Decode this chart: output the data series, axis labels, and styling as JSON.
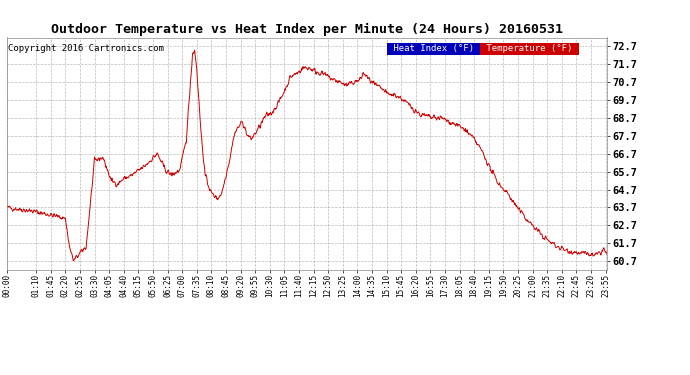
{
  "title": "Outdoor Temperature vs Heat Index per Minute (24 Hours) 20160531",
  "copyright": "Copyright 2016 Cartronics.com",
  "legend_heat_index": "Heat Index (°F)",
  "legend_temperature": "Temperature (°F)",
  "heat_index_color": "#0000bb",
  "temperature_color": "#cc0000",
  "background_color": "#ffffff",
  "grid_color": "#aaaaaa",
  "ylim": [
    60.2,
    73.2
  ],
  "yticks": [
    60.7,
    61.7,
    62.7,
    63.7,
    64.7,
    65.7,
    66.7,
    67.7,
    68.7,
    69.7,
    70.7,
    71.7,
    72.7
  ],
  "xlabel_times": [
    "00:00",
    "01:10",
    "01:45",
    "02:20",
    "02:55",
    "03:30",
    "04:05",
    "04:40",
    "05:15",
    "05:50",
    "06:25",
    "07:00",
    "07:35",
    "08:10",
    "08:45",
    "09:20",
    "09:55",
    "10:30",
    "11:05",
    "11:40",
    "12:15",
    "12:50",
    "13:25",
    "14:00",
    "14:35",
    "15:10",
    "15:45",
    "16:20",
    "16:55",
    "17:30",
    "18:05",
    "18:40",
    "19:15",
    "19:50",
    "20:25",
    "21:00",
    "21:35",
    "22:10",
    "22:45",
    "23:20",
    "23:55"
  ],
  "keypoints": [
    [
      0,
      63.7
    ],
    [
      60,
      63.5
    ],
    [
      100,
      63.3
    ],
    [
      140,
      63.1
    ],
    [
      150,
      61.5
    ],
    [
      160,
      60.7
    ],
    [
      170,
      61.0
    ],
    [
      190,
      61.5
    ],
    [
      210,
      66.3
    ],
    [
      230,
      66.5
    ],
    [
      250,
      65.2
    ],
    [
      265,
      65.0
    ],
    [
      280,
      65.3
    ],
    [
      300,
      65.5
    ],
    [
      330,
      66.0
    ],
    [
      360,
      66.7
    ],
    [
      380,
      65.8
    ],
    [
      395,
      65.5
    ],
    [
      415,
      65.8
    ],
    [
      430,
      67.5
    ],
    [
      445,
      72.3
    ],
    [
      450,
      72.5
    ],
    [
      455,
      71.5
    ],
    [
      465,
      68.0
    ],
    [
      475,
      65.5
    ],
    [
      490,
      64.5
    ],
    [
      505,
      64.2
    ],
    [
      515,
      64.5
    ],
    [
      525,
      65.5
    ],
    [
      535,
      66.5
    ],
    [
      545,
      67.8
    ],
    [
      555,
      68.2
    ],
    [
      565,
      68.5
    ],
    [
      575,
      67.8
    ],
    [
      585,
      67.5
    ],
    [
      600,
      68.0
    ],
    [
      620,
      68.8
    ],
    [
      635,
      69.0
    ],
    [
      650,
      69.5
    ],
    [
      665,
      70.2
    ],
    [
      680,
      71.0
    ],
    [
      695,
      71.2
    ],
    [
      710,
      71.5
    ],
    [
      725,
      71.5
    ],
    [
      740,
      71.3
    ],
    [
      755,
      71.2
    ],
    [
      770,
      71.0
    ],
    [
      785,
      70.8
    ],
    [
      800,
      70.7
    ],
    [
      815,
      70.5
    ],
    [
      830,
      70.7
    ],
    [
      845,
      70.8
    ],
    [
      855,
      71.2
    ],
    [
      870,
      70.8
    ],
    [
      885,
      70.5
    ],
    [
      900,
      70.3
    ],
    [
      915,
      70.0
    ],
    [
      930,
      70.0
    ],
    [
      945,
      69.8
    ],
    [
      960,
      69.5
    ],
    [
      975,
      69.2
    ],
    [
      990,
      68.9
    ],
    [
      1005,
      68.8
    ],
    [
      1020,
      68.7
    ],
    [
      1040,
      68.7
    ],
    [
      1060,
      68.5
    ],
    [
      1080,
      68.3
    ],
    [
      1100,
      68.0
    ],
    [
      1120,
      67.5
    ],
    [
      1140,
      66.8
    ],
    [
      1160,
      65.8
    ],
    [
      1180,
      65.0
    ],
    [
      1200,
      64.5
    ],
    [
      1220,
      63.8
    ],
    [
      1240,
      63.2
    ],
    [
      1260,
      62.7
    ],
    [
      1280,
      62.2
    ],
    [
      1300,
      61.8
    ],
    [
      1320,
      61.5
    ],
    [
      1340,
      61.3
    ],
    [
      1360,
      61.2
    ],
    [
      1390,
      61.1
    ],
    [
      1410,
      61.0
    ],
    [
      1425,
      61.2
    ],
    [
      1430,
      61.4
    ],
    [
      1435,
      61.2
    ],
    [
      1439,
      61.0
    ]
  ]
}
